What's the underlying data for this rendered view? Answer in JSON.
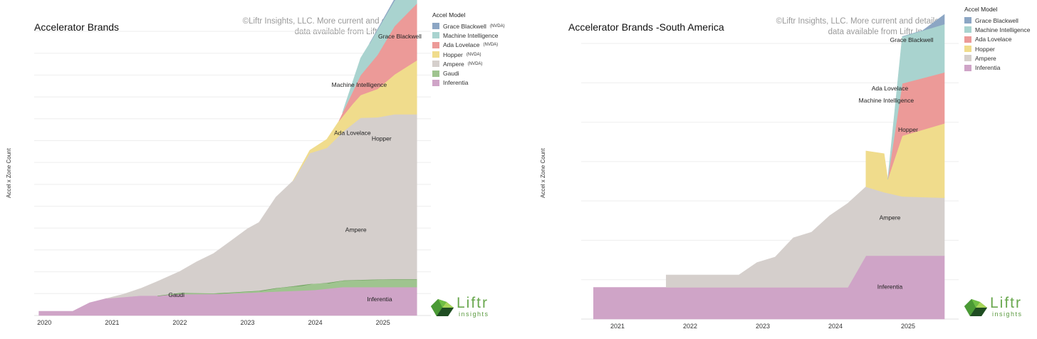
{
  "colors": {
    "grace_blackwell": "#8ca6c4",
    "machine_intelligence": "#a9d3cf",
    "ada_lovelace": "#ec9a98",
    "hopper": "#f0dc8c",
    "ampere": "#d5cfcc",
    "gaudi": "#9fc48f",
    "inferentia": "#cfa4c7"
  },
  "copyright_line1": "©Liftr Insights, LLC. More current and detailed",
  "copyright_line2": "data available from Liftr Insights",
  "y_axis_label": "Accel x Zone Count",
  "legend": {
    "title": "Accel Model",
    "nvda_tag": "(NVDA)"
  },
  "logo": {
    "word": "Liftr",
    "sub": "insights"
  },
  "chart_data": [
    {
      "type": "area",
      "title": "Accelerator Brands",
      "xlabel": "",
      "ylabel": "Accel x Zone Count",
      "x_ticks": [
        "2020",
        "2021",
        "2022",
        "2023",
        "2024",
        "2025"
      ],
      "x_tick_values": [
        2020.0,
        2021.0,
        2022.0,
        2023.0,
        2024.0,
        2025.0
      ],
      "xlim": [
        2019.85,
        2025.55
      ],
      "ylim": [
        0,
        100
      ],
      "legend": [
        {
          "name": "Grace Blackwell",
          "tag": "(NVDA)",
          "key": "grace_blackwell"
        },
        {
          "name": "Machine Intelligence",
          "tag": "",
          "key": "machine_intelligence"
        },
        {
          "name": "Ada Lovelace",
          "tag": "(NVDA)",
          "key": "ada_lovelace"
        },
        {
          "name": "Hopper",
          "tag": "(NVDA)",
          "key": "hopper"
        },
        {
          "name": "Ampere",
          "tag": "(NVDA)",
          "key": "ampere"
        },
        {
          "name": "Gaudi",
          "tag": "",
          "key": "gaudi"
        },
        {
          "name": "Inferentia",
          "tag": "",
          "key": "inferentia"
        }
      ],
      "series": [
        {
          "name": "Inferentia",
          "key": "inferentia",
          "x": [
            2019.92,
            2020.42,
            2020.67,
            2020.92,
            2021.17,
            2021.42,
            2021.67,
            2022.0,
            2022.5,
            2023.0,
            2023.5,
            2024.0,
            2024.4,
            2025.0,
            2025.5
          ],
          "values": [
            1.5,
            1.5,
            4.5,
            6.0,
            6.5,
            7.0,
            7.0,
            7.5,
            7.5,
            8.0,
            8.5,
            9.0,
            10.0,
            10.0,
            10.0
          ]
        },
        {
          "name": "Gaudi",
          "key": "gaudi",
          "x": [
            2021.67,
            2022.0,
            2022.6,
            2022.9,
            2023.2,
            2023.5,
            2023.8,
            2024.0,
            2024.2,
            2024.4,
            2025.0,
            2025.5
          ],
          "values": [
            0,
            0.5,
            0.3,
            0.5,
            0.6,
            1.5,
            1.8,
            2.5,
            2.0,
            2.4,
            2.8,
            2.8
          ]
        },
        {
          "name": "Ampere",
          "key": "ampere",
          "x": [
            2020.92,
            2021.17,
            2021.42,
            2021.67,
            2022.0,
            2022.25,
            2022.5,
            2022.75,
            2023.0,
            2023.17,
            2023.42,
            2023.67,
            2023.92,
            2024.17,
            2024.42,
            2024.67,
            2024.92,
            2025.17,
            2025.5
          ],
          "values": [
            0,
            1.0,
            2.5,
            5.0,
            7.5,
            11.0,
            14.0,
            18.0,
            22.0,
            24.0,
            32.0,
            37.0,
            46.0,
            47.5,
            52.5,
            57.0,
            57.0,
            58.0,
            58.0
          ]
        },
        {
          "name": "Hopper",
          "key": "hopper",
          "x": [
            2023.67,
            2023.92,
            2024.17,
            2024.42,
            2024.67,
            2024.92,
            2025.17,
            2025.5
          ],
          "values": [
            0,
            1.0,
            3.0,
            6.0,
            8.0,
            10.0,
            14.0,
            19.0
          ]
        },
        {
          "name": "Ada Lovelace",
          "key": "ada_lovelace",
          "x": [
            2024.35,
            2024.55,
            2024.67,
            2024.92,
            2025.17,
            2025.5
          ],
          "values": [
            0,
            4.0,
            7.0,
            12.0,
            17.0,
            20.0
          ]
        },
        {
          "name": "Machine Intelligence",
          "key": "machine_intelligence",
          "x": [
            2024.4,
            2024.67,
            2024.92,
            2025.17,
            2025.5
          ],
          "values": [
            0,
            6.0,
            8.5,
            9.0,
            8.0
          ]
        },
        {
          "name": "Grace Blackwell",
          "key": "grace_blackwell",
          "x": [
            2024.8,
            2025.17,
            2025.5
          ],
          "values": [
            0,
            0.5,
            2.0
          ]
        }
      ],
      "annotations": [
        {
          "text": "Grace Blackwell",
          "x": 2025.25,
          "y": 97.5
        },
        {
          "text": "Machine Intelligence",
          "x": 2024.65,
          "y": 80.5
        },
        {
          "text": "Ada Lovelace",
          "x": 2024.55,
          "y": 63.5
        },
        {
          "text": "Hopper",
          "x": 2024.98,
          "y": 61.5
        },
        {
          "text": "Ampere",
          "x": 2024.6,
          "y": 29.5
        },
        {
          "text": "Gaudi",
          "x": 2021.95,
          "y": 6.5
        },
        {
          "text": "Inferentia",
          "x": 2024.95,
          "y": 5.0
        }
      ]
    },
    {
      "type": "area",
      "title": "Accelerator Brands  -South America",
      "xlabel": "",
      "ylabel": "Accel x Zone Count",
      "x_ticks": [
        "2021",
        "2022",
        "2023",
        "2024",
        "2025"
      ],
      "x_tick_values": [
        2021.0,
        2022.0,
        2023.0,
        2024.0,
        2025.0
      ],
      "xlim": [
        2020.5,
        2025.5
      ],
      "ylim": [
        0,
        100
      ],
      "legend": [
        {
          "name": "Grace Blackwell",
          "tag": "",
          "key": "grace_blackwell"
        },
        {
          "name": "Machine Intelligence",
          "tag": "",
          "key": "machine_intelligence"
        },
        {
          "name": "Ada Lovelace",
          "tag": "",
          "key": "ada_lovelace"
        },
        {
          "name": "Hopper",
          "tag": "",
          "key": "hopper"
        },
        {
          "name": "Ampere",
          "tag": "",
          "key": "ampere"
        },
        {
          "name": "Inferentia",
          "tag": "",
          "key": "inferentia"
        }
      ],
      "series": [
        {
          "name": "Inferentia",
          "key": "inferentia",
          "x": [
            2020.67,
            2024.17,
            2024.42,
            2025.5
          ],
          "values": [
            11.5,
            11.5,
            23.0,
            23.0
          ]
        },
        {
          "name": "Ampere",
          "key": "ampere",
          "x": [
            2021.67,
            2022.67,
            2022.92,
            2023.17,
            2023.42,
            2023.67,
            2023.92,
            2024.17,
            2024.42,
            2024.67,
            2024.92,
            2025.5
          ],
          "values": [
            4.5,
            4.5,
            9.0,
            11.0,
            18.0,
            20.0,
            26.0,
            30.5,
            25.0,
            23.0,
            21.5,
            21.0
          ]
        },
        {
          "name": "Hopper",
          "key": "hopper",
          "x": [
            2024.42,
            2024.67,
            2024.72,
            2024.92,
            2025.5
          ],
          "values": [
            13.0,
            14.0,
            5.0,
            22.0,
            27.0
          ]
        },
        {
          "name": "Ada Lovelace",
          "key": "ada_lovelace",
          "x": [
            2024.72,
            2024.92,
            2025.5
          ],
          "values": [
            0,
            19.0,
            18.5
          ]
        },
        {
          "name": "Machine Intelligence",
          "key": "machine_intelligence",
          "x": [
            2024.72,
            2024.92,
            2025.5
          ],
          "values": [
            0,
            17.0,
            17.5
          ]
        },
        {
          "name": "Grace Blackwell",
          "key": "grace_blackwell",
          "x": [
            2024.92,
            2025.2,
            2025.5
          ],
          "values": [
            0,
            0,
            3.5
          ]
        }
      ],
      "annotations": [
        {
          "text": "Grace Blackwell",
          "x": 2025.05,
          "y": 100.5
        },
        {
          "text": "Ada Lovelace",
          "x": 2024.75,
          "y": 83.0
        },
        {
          "text": "Machine Intelligence",
          "x": 2024.7,
          "y": 78.5
        },
        {
          "text": "Hopper",
          "x": 2025.0,
          "y": 68.0
        },
        {
          "text": "Ampere",
          "x": 2024.75,
          "y": 36.0
        },
        {
          "text": "Inferentia",
          "x": 2024.75,
          "y": 11.0
        }
      ]
    }
  ]
}
